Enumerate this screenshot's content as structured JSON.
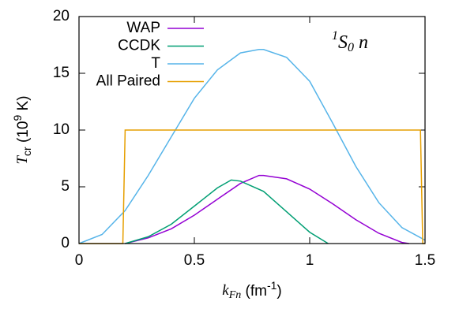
{
  "chart_data": {
    "type": "line",
    "xlabel": [
      "k",
      "Fn",
      " (fm",
      "-1",
      ")"
    ],
    "ylabel": [
      "T",
      "cr",
      " (10",
      "9",
      " K)"
    ],
    "annotation": [
      "1",
      "S",
      "0",
      " n"
    ],
    "xlim": [
      0,
      1.5
    ],
    "ylim": [
      0,
      20
    ],
    "xticks": [
      0,
      0.5,
      1,
      1.5
    ],
    "yticks": [
      0,
      5,
      10,
      15,
      20
    ],
    "legend": "top-left",
    "series": [
      {
        "name": "WAP",
        "color": "#9400d3",
        "x": [
          0.2,
          0.3,
          0.4,
          0.5,
          0.6,
          0.7,
          0.78,
          0.8,
          0.9,
          1.0,
          1.1,
          1.2,
          1.3,
          1.4,
          1.43
        ],
        "values": [
          0,
          0.5,
          1.3,
          2.5,
          3.9,
          5.3,
          6.0,
          6.0,
          5.7,
          4.8,
          3.5,
          2.1,
          0.9,
          0.1,
          0
        ]
      },
      {
        "name": "CCDK",
        "color": "#009e73",
        "x": [
          0.2,
          0.3,
          0.4,
          0.5,
          0.6,
          0.66,
          0.7,
          0.8,
          0.9,
          1.0,
          1.08
        ],
        "values": [
          0,
          0.6,
          1.7,
          3.3,
          4.9,
          5.6,
          5.5,
          4.6,
          2.8,
          1.0,
          0
        ]
      },
      {
        "name": "T",
        "color": "#56b4e9",
        "x": [
          0,
          0.1,
          0.2,
          0.3,
          0.4,
          0.5,
          0.6,
          0.7,
          0.78,
          0.8,
          0.9,
          1.0,
          1.1,
          1.2,
          1.3,
          1.4,
          1.5
        ],
        "values": [
          0,
          0.8,
          2.9,
          6.0,
          9.4,
          12.8,
          15.3,
          16.8,
          17.1,
          17.1,
          16.4,
          14.3,
          10.6,
          6.8,
          3.6,
          1.4,
          0.3
        ]
      },
      {
        "name": "All Paired",
        "color": "#e69f00",
        "x": [
          0,
          0.19,
          0.2,
          1.48,
          1.49,
          1.5
        ],
        "values": [
          0,
          0,
          10,
          10,
          0,
          0
        ]
      }
    ]
  }
}
